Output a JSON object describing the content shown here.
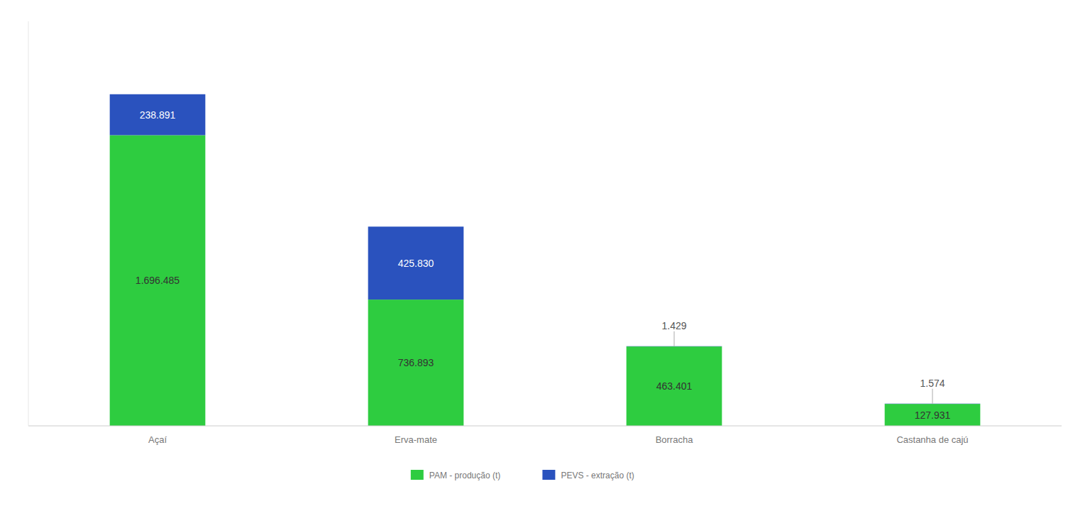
{
  "chart_data": {
    "type": "bar",
    "stacked": true,
    "categories": [
      "Açaí",
      "Erva-mate",
      "Borracha",
      "Castanha de cajú"
    ],
    "series": [
      {
        "name": "PAM - produção (t)",
        "color": "#2ecc40",
        "values": [
          1696485,
          736893,
          463401,
          127931
        ],
        "value_labels": [
          "1.696.485",
          "736.893",
          "463.401",
          "127.931"
        ]
      },
      {
        "name": "PEVS - extração (t)",
        "color": "#2a52be",
        "values": [
          238891,
          425830,
          1429,
          1574
        ],
        "value_labels": [
          "238.891",
          "425.830",
          "1.429",
          "1.574"
        ]
      }
    ],
    "ylim": [
      0,
      2361158.72
    ],
    "data_labels": true,
    "tick_labels": "x",
    "grid": false,
    "legend": "bottom"
  }
}
